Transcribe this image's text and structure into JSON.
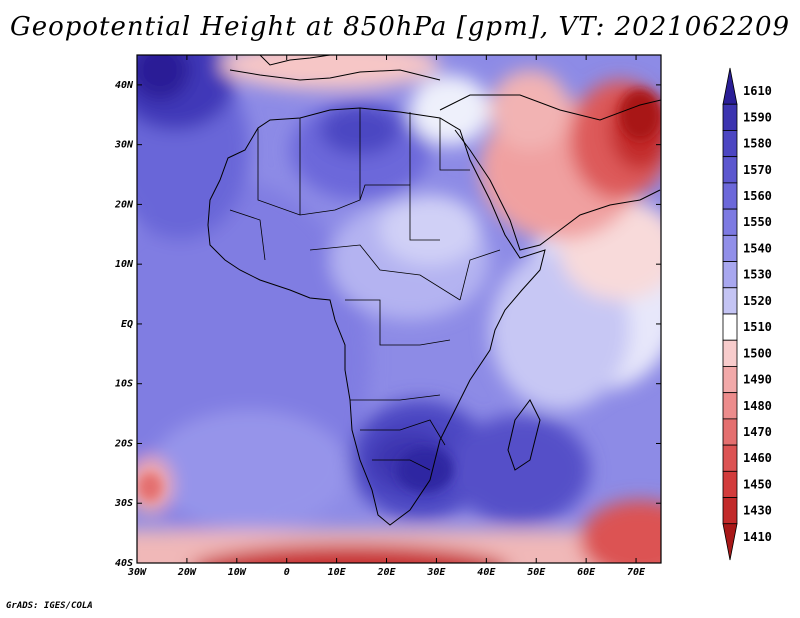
{
  "title": "Geopotential Height at 850hPa [gpm], VT: 2021062209",
  "credit": "GrADS: IGES/COLA",
  "map": {
    "lon_range": [
      -30,
      75
    ],
    "lat_range": [
      -40,
      45
    ],
    "lat_ticks": [
      {
        "value": 40,
        "label": "40N"
      },
      {
        "value": 30,
        "label": "30N"
      },
      {
        "value": 20,
        "label": "20N"
      },
      {
        "value": 10,
        "label": "10N"
      },
      {
        "value": 0,
        "label": "EQ"
      },
      {
        "value": -10,
        "label": "10S"
      },
      {
        "value": -20,
        "label": "20S"
      },
      {
        "value": -30,
        "label": "30S"
      },
      {
        "value": -40,
        "label": "40S"
      }
    ],
    "lon_ticks": [
      {
        "value": -30,
        "label": "30W"
      },
      {
        "value": -20,
        "label": "20W"
      },
      {
        "value": -10,
        "label": "10W"
      },
      {
        "value": 0,
        "label": "0"
      },
      {
        "value": 10,
        "label": "10E"
      },
      {
        "value": 20,
        "label": "20E"
      },
      {
        "value": 30,
        "label": "30E"
      },
      {
        "value": 40,
        "label": "40E"
      },
      {
        "value": 50,
        "label": "50E"
      },
      {
        "value": 60,
        "label": "60E"
      },
      {
        "value": 70,
        "label": "70E"
      }
    ]
  },
  "colorbar": {
    "levels": [
      {
        "label": "1610",
        "color": "#2a1e96"
      },
      {
        "label": "1590",
        "color": "#3c34b0"
      },
      {
        "label": "1580",
        "color": "#4c46c2"
      },
      {
        "label": "1570",
        "color": "#5c57cf"
      },
      {
        "label": "1560",
        "color": "#6c68da"
      },
      {
        "label": "1550",
        "color": "#7d7ae2"
      },
      {
        "label": "1540",
        "color": "#918fe9"
      },
      {
        "label": "1530",
        "color": "#a8a7ef"
      },
      {
        "label": "1520",
        "color": "#c4c4f4"
      },
      {
        "label": "1510",
        "color": "#ffffff"
      },
      {
        "label": "1500",
        "color": "#f8cccc"
      },
      {
        "label": "1490",
        "color": "#f2a9a9"
      },
      {
        "label": "1480",
        "color": "#ec8c8c"
      },
      {
        "label": "1470",
        "color": "#e46f6f"
      },
      {
        "label": "1460",
        "color": "#dc5353"
      },
      {
        "label": "1450",
        "color": "#d23c3c"
      },
      {
        "label": "1430",
        "color": "#c22a2a"
      },
      {
        "label": "1410",
        "color": "#a81818"
      }
    ]
  }
}
